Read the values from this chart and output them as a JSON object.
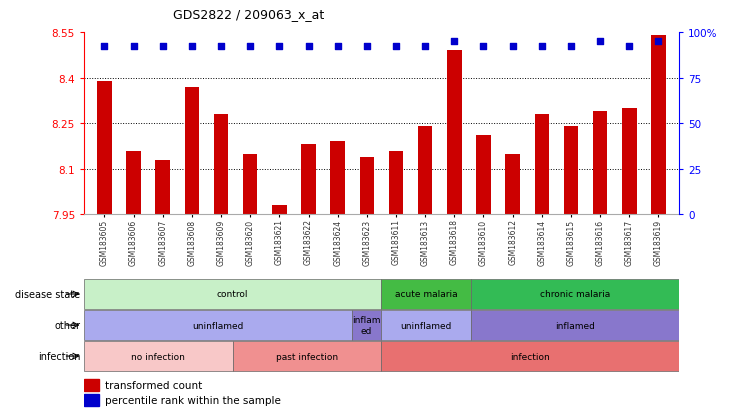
{
  "title": "GDS2822 / 209063_x_at",
  "samples": [
    "GSM183605",
    "GSM183606",
    "GSM183607",
    "GSM183608",
    "GSM183609",
    "GSM183620",
    "GSM183621",
    "GSM183622",
    "GSM183624",
    "GSM183623",
    "GSM183611",
    "GSM183613",
    "GSM183618",
    "GSM183610",
    "GSM183612",
    "GSM183614",
    "GSM183615",
    "GSM183616",
    "GSM183617",
    "GSM183619"
  ],
  "bar_values": [
    8.39,
    8.16,
    8.13,
    8.37,
    8.28,
    8.15,
    7.98,
    8.18,
    8.19,
    8.14,
    8.16,
    8.24,
    8.49,
    8.21,
    8.15,
    8.28,
    8.24,
    8.29,
    8.3,
    8.54
  ],
  "percentile_values": [
    97,
    97,
    97,
    97,
    97,
    97,
    97,
    97,
    97,
    97,
    97,
    97,
    100,
    97,
    97,
    97,
    97,
    100,
    97,
    100
  ],
  "ylim_left": [
    7.95,
    8.55
  ],
  "yticks_left": [
    7.95,
    8.1,
    8.25,
    8.4,
    8.55
  ],
  "ytick_labels_left": [
    "7.95",
    "8.1",
    "8.25",
    "8.4",
    "8.55"
  ],
  "ylim_right": [
    0,
    100
  ],
  "yticks_right": [
    0,
    25,
    50,
    75,
    100
  ],
  "ytick_labels_right": [
    "0",
    "25",
    "50",
    "75",
    "100%"
  ],
  "bar_color": "#cc0000",
  "dot_color": "#0000cc",
  "grid_color": "#888888",
  "annotation_rows": [
    {
      "label": "disease state",
      "segments": [
        {
          "text": "control",
          "start": 0,
          "end": 10,
          "color": "#c8f0c8",
          "textcolor": "#000000"
        },
        {
          "text": "acute malaria",
          "start": 10,
          "end": 13,
          "color": "#44bb44",
          "textcolor": "#000000"
        },
        {
          "text": "chronic malaria",
          "start": 13,
          "end": 20,
          "color": "#33bb55",
          "textcolor": "#000000"
        }
      ]
    },
    {
      "label": "other",
      "segments": [
        {
          "text": "uninflamed",
          "start": 0,
          "end": 9,
          "color": "#aaaaee",
          "textcolor": "#000000"
        },
        {
          "text": "inflam\ned",
          "start": 9,
          "end": 10,
          "color": "#8877cc",
          "textcolor": "#000000"
        },
        {
          "text": "uninflamed",
          "start": 10,
          "end": 13,
          "color": "#aaaaee",
          "textcolor": "#000000"
        },
        {
          "text": "inflamed",
          "start": 13,
          "end": 20,
          "color": "#8877cc",
          "textcolor": "#000000"
        }
      ]
    },
    {
      "label": "infection",
      "segments": [
        {
          "text": "no infection",
          "start": 0,
          "end": 5,
          "color": "#f8c8c8",
          "textcolor": "#000000"
        },
        {
          "text": "past infection",
          "start": 5,
          "end": 10,
          "color": "#f09090",
          "textcolor": "#000000"
        },
        {
          "text": "infection",
          "start": 10,
          "end": 20,
          "color": "#e87070",
          "textcolor": "#000000"
        }
      ]
    }
  ],
  "legend_items": [
    {
      "label": "transformed count",
      "color": "#cc0000"
    },
    {
      "label": "percentile rank within the sample",
      "color": "#0000cc"
    }
  ]
}
